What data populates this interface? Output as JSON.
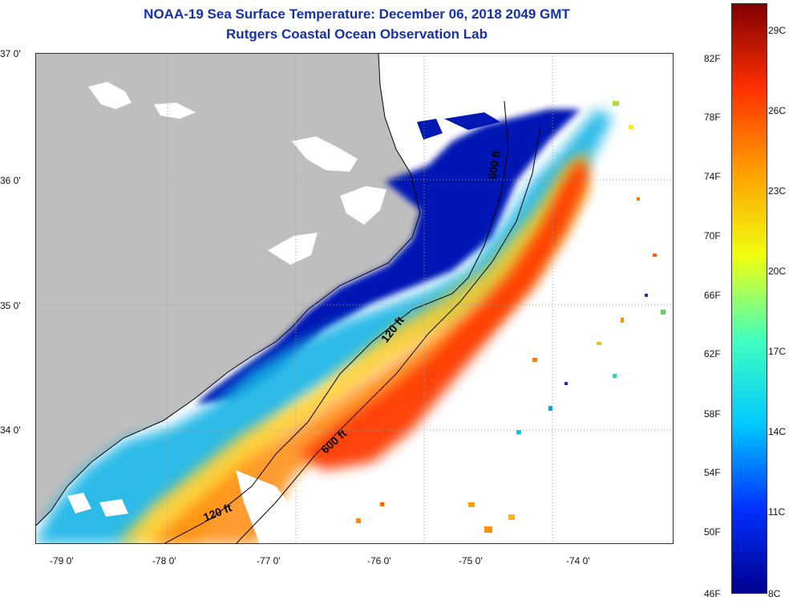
{
  "title": "NOAA-19 Sea Surface Temperature:  December 06, 2018 2049 GMT",
  "subtitle": "Rutgers Coastal Ocean Observation Lab",
  "lat_labels": [
    "37 0'",
    "36 0'",
    "35 0'",
    "34 0'"
  ],
  "lon_labels": [
    "-79 0'",
    "-78 0'",
    "-77 0'",
    "-76 0'",
    "-75 0'",
    "-74 0'"
  ],
  "isobaths": {
    "shelf_120": "120 ft",
    "shelf_120_north": "120 ft",
    "slope_600": "600 ft",
    "slope_600_north": "600 ft"
  },
  "colorbar": {
    "fahrenheit": [
      "82F",
      "78F",
      "74F",
      "70F",
      "66F",
      "62F",
      "58F",
      "54F",
      "50F",
      "46F"
    ],
    "celsius": [
      "29C",
      "26C",
      "23C",
      "20C",
      "17C",
      "14C",
      "11C",
      "8C"
    ],
    "range_c": [
      8,
      30
    ],
    "colors": [
      "#00008f",
      "#0030ff",
      "#00c8ff",
      "#40ffc0",
      "#f0ff10",
      "#ffa000",
      "#ff3000",
      "#800000"
    ]
  },
  "map_colors": {
    "land": "#bebebe",
    "no_data": "#ffffff"
  }
}
